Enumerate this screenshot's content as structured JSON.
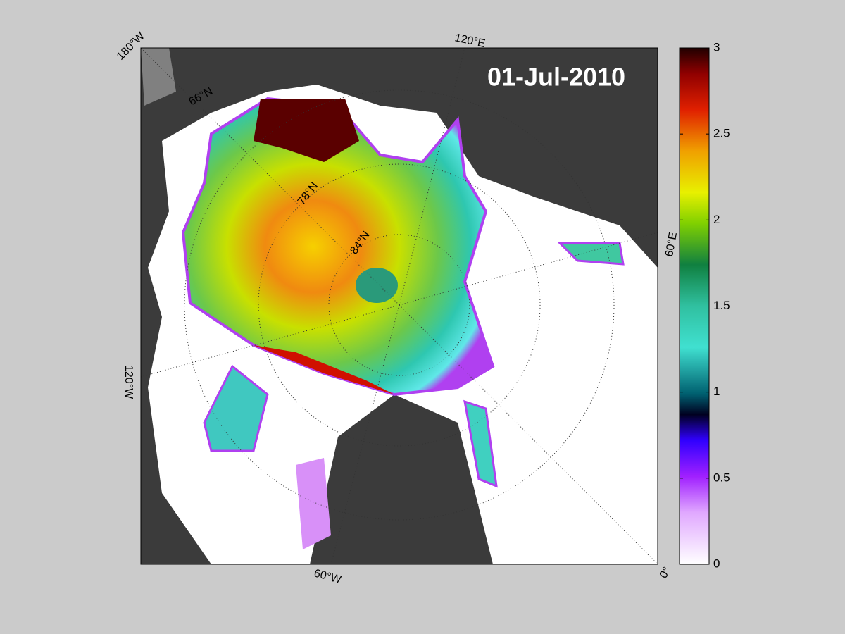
{
  "title": "01-Jul-2010",
  "graticule_labels": {
    "lon": [
      "180°W",
      "120°E",
      "60°E",
      "0°",
      "60°W",
      "120°W"
    ],
    "lat": [
      "66°N",
      "78°N",
      "84°N"
    ]
  },
  "colorbar": {
    "lim": [
      0,
      3
    ],
    "ticks": [
      0,
      0.5,
      1,
      1.5,
      2,
      2.5,
      3
    ]
  }
}
